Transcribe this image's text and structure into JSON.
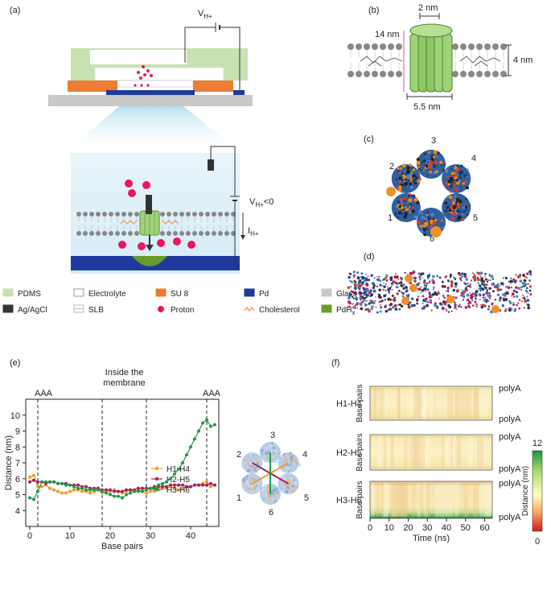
{
  "panels": {
    "a": "(a)",
    "b": "(b)",
    "c": "(c)",
    "d": "(d)",
    "e": "(e)",
    "f": "(f)"
  },
  "panel_a": {
    "voltage_top": "V",
    "voltage_top_sub": "H+",
    "voltage_bottom": "V",
    "voltage_bottom_sub": "H+",
    "voltage_bottom_cond": "<0",
    "current": "I",
    "current_sub": "H+"
  },
  "legend": [
    {
      "label": "PDMS",
      "color": "#c7e2b0"
    },
    {
      "label": "Electrolyte",
      "color": "#ffffff"
    },
    {
      "label": "SU 8",
      "color": "#ec7d34"
    },
    {
      "label": "Pd",
      "color": "#1e3a9e"
    },
    {
      "label": "Glass",
      "color": "#c8c8c8"
    },
    {
      "label": "Ag/AgCl",
      "color": "#333333"
    },
    {
      "label": "SLB",
      "color": "#bbbbbb"
    },
    {
      "label": "Proton",
      "color": "#e8185e"
    },
    {
      "label": "Cholesterol",
      "color": "#f2a46c"
    },
    {
      "label": "PdH",
      "label_sub": "x",
      "color": "#6b9a2c"
    }
  ],
  "panel_b": {
    "width_top": "2 nm",
    "height_left": "14 nm",
    "height_right": "4 nm",
    "width_bottom": "5.5 nm"
  },
  "panel_c": {
    "helix_labels": [
      "1",
      "2",
      "3",
      "4",
      "5",
      "6"
    ]
  },
  "panel_e": {
    "top_labels": [
      "AAA",
      "Inside the\nmembrane",
      "AAA"
    ],
    "inset_labels": [
      "1",
      "2",
      "3",
      "4",
      "5",
      "6"
    ]
  },
  "chart_data": [
    {
      "type": "line",
      "xlabel": "Base pairs",
      "ylabel": "Distance (nm)",
      "xlim": [
        -1,
        47
      ],
      "ylim": [
        3,
        11
      ],
      "xticks": [
        0,
        10,
        20,
        30,
        40
      ],
      "yticks": [
        4,
        5,
        6,
        7,
        8,
        9,
        10
      ],
      "vlines": [
        2,
        18,
        29,
        44
      ],
      "legend_position": "bottom-right",
      "series": [
        {
          "name": "H1-H4",
          "color": "#f39a2b",
          "x": [
            0,
            1,
            2,
            3,
            4,
            5,
            6,
            7,
            8,
            9,
            10,
            11,
            12,
            13,
            14,
            15,
            16,
            17,
            18,
            19,
            20,
            21,
            22,
            23,
            24,
            25,
            26,
            27,
            28,
            29,
            30,
            31,
            32,
            33,
            34,
            35,
            36,
            37,
            38,
            39,
            40,
            41,
            42,
            43,
            44,
            45,
            46
          ],
          "values": [
            6.1,
            6.2,
            5.5,
            5.5,
            5.6,
            5.4,
            5.3,
            5.2,
            5.1,
            5.1,
            5.2,
            5.3,
            5.3,
            5.2,
            5.2,
            5.1,
            5.2,
            5.3,
            5.1,
            5.2,
            5.2,
            5.3,
            5.2,
            5.1,
            5.2,
            5.3,
            5.2,
            5.3,
            5.2,
            5.1,
            5.2,
            5.2,
            5.3,
            5.4,
            5.4,
            5.5,
            5.4,
            5.3,
            5.4,
            5.5,
            5.5,
            5.6,
            5.6,
            5.7,
            5.8,
            5.5,
            5.6
          ]
        },
        {
          "name": "H2-H5",
          "color": "#a3245a",
          "x": [
            0,
            1,
            2,
            3,
            4,
            5,
            6,
            7,
            8,
            9,
            10,
            11,
            12,
            13,
            14,
            15,
            16,
            17,
            18,
            19,
            20,
            21,
            22,
            23,
            24,
            25,
            26,
            27,
            28,
            29,
            30,
            31,
            32,
            33,
            34,
            35,
            36,
            37,
            38,
            39,
            40,
            41,
            42,
            43,
            44,
            45,
            46
          ],
          "values": [
            5.8,
            5.9,
            5.8,
            5.8,
            5.7,
            5.8,
            5.8,
            5.7,
            5.7,
            5.7,
            5.6,
            5.6,
            5.6,
            5.5,
            5.5,
            5.4,
            5.4,
            5.4,
            5.3,
            5.3,
            5.3,
            5.2,
            5.2,
            5.2,
            5.3,
            5.3,
            5.3,
            5.4,
            5.4,
            5.4,
            5.4,
            5.5,
            5.5,
            5.5,
            5.5,
            5.6,
            5.6,
            5.6,
            5.6,
            5.5,
            5.5,
            5.6,
            5.6,
            5.6,
            5.6,
            5.7,
            5.6
          ]
        },
        {
          "name": "H3-H6",
          "color": "#1f9a4a",
          "x": [
            0,
            1,
            2,
            3,
            4,
            5,
            6,
            7,
            8,
            9,
            10,
            11,
            12,
            13,
            14,
            15,
            16,
            17,
            18,
            19,
            20,
            21,
            22,
            23,
            24,
            25,
            26,
            27,
            28,
            29,
            30,
            31,
            32,
            33,
            34,
            35,
            36,
            37,
            38,
            39,
            40,
            41,
            42,
            43,
            44,
            45,
            46
          ],
          "values": [
            4.8,
            4.7,
            5.2,
            5.8,
            5.8,
            5.8,
            5.8,
            5.7,
            5.7,
            5.6,
            5.6,
            5.5,
            5.4,
            5.4,
            5.3,
            5.3,
            5.3,
            5.3,
            5.2,
            5.1,
            5.0,
            4.9,
            4.9,
            4.8,
            5.0,
            5.1,
            5.2,
            5.2,
            5.2,
            5.3,
            5.4,
            5.4,
            5.6,
            5.7,
            5.8,
            6.0,
            6.3,
            6.6,
            7.0,
            7.5,
            8.0,
            8.5,
            9.0,
            9.5,
            9.7,
            9.3,
            9.4
          ]
        }
      ]
    },
    {
      "type": "heatmap",
      "xlabel": "Time (ns)",
      "ylabel": "Base pairs",
      "xlim": [
        0,
        64
      ],
      "xticks": [
        0,
        10,
        20,
        30,
        40,
        50,
        60
      ],
      "rows": [
        {
          "name": "H1-H4",
          "top_label": "polyA",
          "bottom_label": "polyA"
        },
        {
          "name": "H2-H5",
          "top_label": "polyA",
          "bottom_label": "polyA"
        },
        {
          "name": "H3-H6",
          "top_label": "polyA",
          "bottom_label": "polyA"
        }
      ],
      "colorbar": {
        "label": "Distance (nm)",
        "min": 0,
        "max": 12,
        "min_label": "0",
        "max_label": "12",
        "colors": [
          "#d7191c",
          "#fdae61",
          "#ffffbf",
          "#a6d96a",
          "#1a9641"
        ]
      }
    }
  ]
}
